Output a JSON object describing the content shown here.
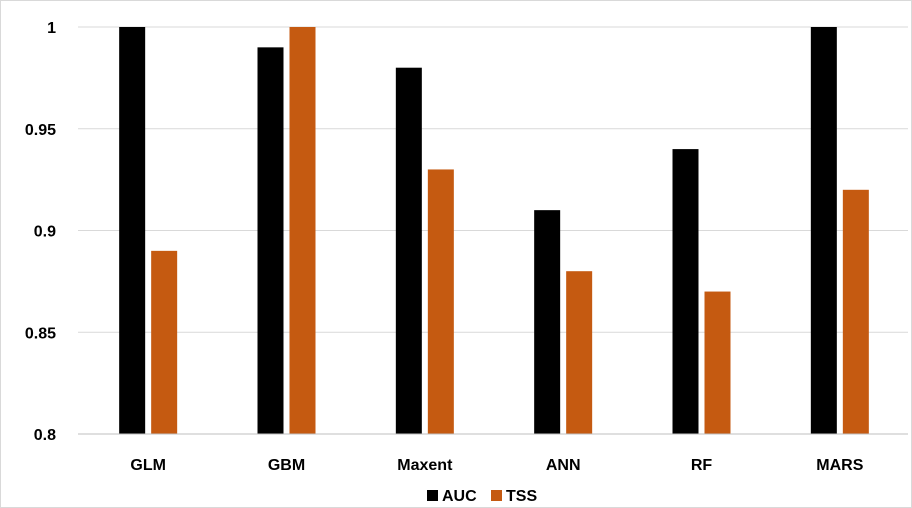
{
  "chart_data": {
    "type": "bar",
    "categories": [
      "GLM",
      "GBM",
      "Maxent",
      "ANN",
      "RF",
      "MARS"
    ],
    "series": [
      {
        "name": "AUC",
        "values": [
          1.0,
          0.99,
          0.98,
          0.91,
          0.94,
          1.0
        ],
        "color": "#000000"
      },
      {
        "name": "TSS",
        "values": [
          0.89,
          1.0,
          0.93,
          0.88,
          0.87,
          0.92
        ],
        "color": "#c55a11"
      }
    ],
    "y_ticks": [
      "0.8",
      "0.85",
      "0.9",
      "0.95",
      "1"
    ],
    "ylim": [
      0.8,
      1.0
    ],
    "grid": true,
    "legend_position": "bottom"
  }
}
